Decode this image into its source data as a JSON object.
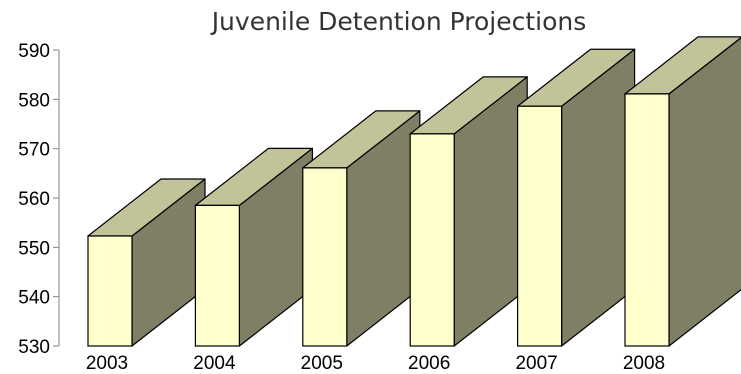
{
  "chart_data": {
    "type": "bar",
    "title": "Juvenile Detention Projections",
    "xlabel": "",
    "ylabel": "",
    "categories": [
      "2003",
      "2004",
      "2005",
      "2006",
      "2007",
      "2008"
    ],
    "values": [
      552.3,
      558.5,
      566.1,
      573.0,
      578.6,
      581.1
    ],
    "ylim": [
      530,
      590
    ],
    "yticks": [
      "530",
      "540",
      "550",
      "560",
      "570",
      "580",
      "590"
    ],
    "grid": false,
    "legend": "none",
    "style": "3d-box",
    "colors": {
      "front": "#FFFFCC",
      "top": "#C3C39A",
      "side": "#7F7F65",
      "stroke": "#000000",
      "axis": "#808080",
      "title": "#333333"
    }
  }
}
